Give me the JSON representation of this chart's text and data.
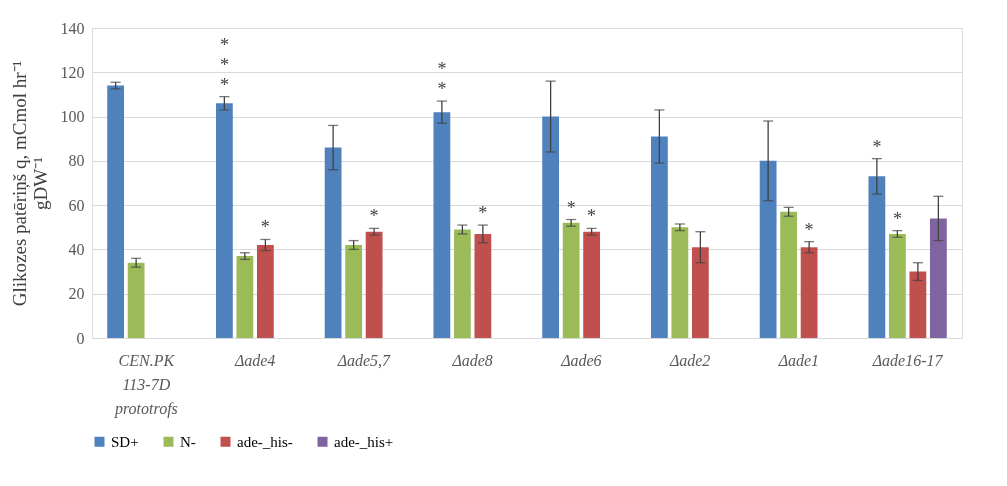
{
  "chart_data": {
    "type": "bar",
    "ylabel": "Glikozes patēriņš q, mCmol hr⁻¹ gDW⁻¹",
    "categories": [
      "CEN.PK\n113-7D\nprototrofs",
      "Δade4",
      "Δade5,7",
      "Δade8",
      "Δade6",
      "Δade2",
      "Δade1",
      "Δade16-17"
    ],
    "series": [
      {
        "name": "SD+",
        "color": "#4f81bd",
        "values": [
          114,
          106,
          86,
          102,
          100,
          91,
          80,
          73
        ],
        "errors": [
          1.5,
          3,
          10,
          5,
          16,
          12,
          18,
          8
        ]
      },
      {
        "name": "N-",
        "color": "#9bbb59",
        "values": [
          34,
          37,
          42,
          49,
          52,
          50,
          57,
          47
        ],
        "errors": [
          2,
          1.5,
          2,
          2,
          1.5,
          1.5,
          2,
          1.5
        ]
      },
      {
        "name": "ade-_his-",
        "color": "#c0504d",
        "values": [
          null,
          42,
          48,
          47,
          48,
          41,
          41,
          30
        ],
        "errors": [
          null,
          2.5,
          1.5,
          4,
          1.5,
          7,
          2.5,
          4
        ]
      },
      {
        "name": "ade-_his+",
        "color": "#8064a2",
        "values": [
          null,
          null,
          null,
          null,
          null,
          null,
          null,
          54
        ],
        "errors": [
          null,
          null,
          null,
          null,
          null,
          null,
          null,
          10
        ]
      }
    ],
    "ylim": [
      0,
      140
    ],
    "yticks": [
      0,
      20,
      40,
      60,
      80,
      100,
      120,
      140
    ],
    "grid": "y",
    "legend": "bottom",
    "annotations": [
      {
        "text": "*",
        "x": "Δade4",
        "y": 42
      },
      "*",
      "*",
      "*",
      {
        "text": "*",
        "x": "Δade5,7",
        "y": 48
      },
      {
        "text": "*",
        "x": "Δade8",
        "y": 47
      },
      "*",
      "*",
      {
        "text": "*",
        "x": "Δade6",
        "y": 52
      },
      {
        "text": "*",
        "x": "Δade6",
        "y": 48
      },
      {
        "text": "*",
        "x": "Δade1",
        "y": 41
      },
      {
        "text": "*",
        "x": "Δade16-17",
        "y": 47
      },
      "*"
    ]
  }
}
